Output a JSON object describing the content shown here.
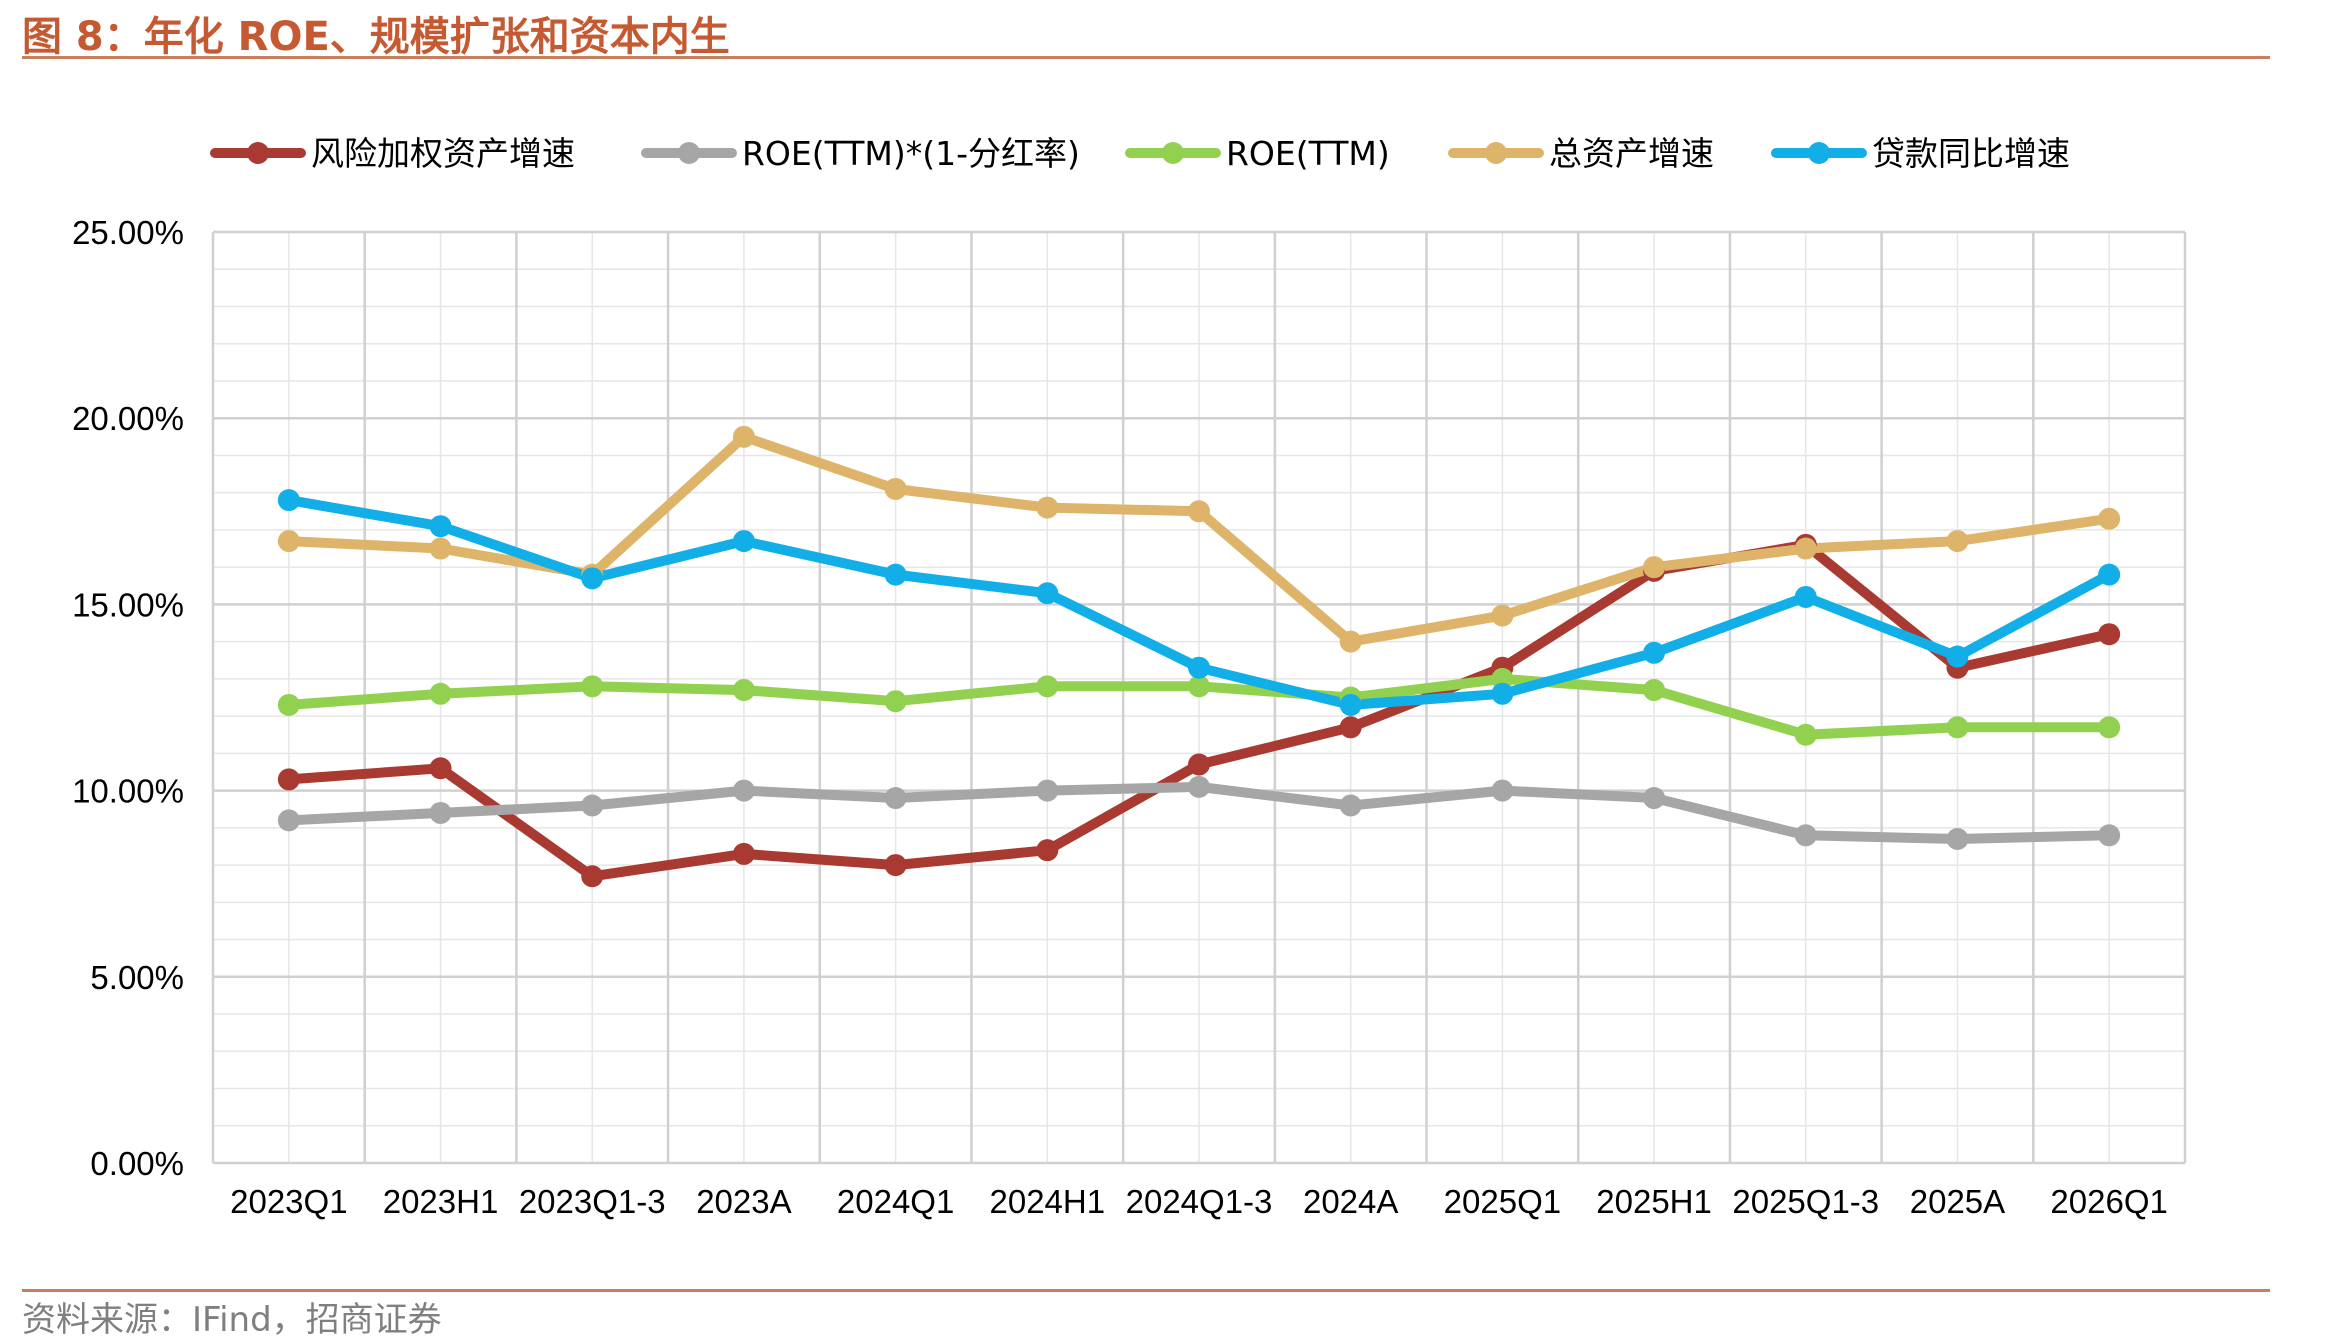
{
  "figure": {
    "title": "图 8：年化 ROE、规模扩张和资本内生",
    "source": "资料来源：IFind，招商证券"
  },
  "chart_data": {
    "type": "line",
    "categories": [
      "2023Q1",
      "2023H1",
      "2023Q1-3",
      "2023A",
      "2024Q1",
      "2024H1",
      "2024Q1-3",
      "2024A",
      "2025Q1",
      "2025H1",
      "2025Q1-3",
      "2025A",
      "2026Q1"
    ],
    "y_ticks": [
      "0.00%",
      "5.00%",
      "10.00%",
      "15.00%",
      "20.00%",
      "25.00%"
    ],
    "ylim": [
      0,
      25
    ],
    "grid": true,
    "legend_position": "top",
    "series": [
      {
        "name": "风险加权资产增速",
        "color": "#a93a32",
        "values": [
          10.3,
          10.6,
          7.7,
          8.3,
          8.0,
          8.4,
          10.7,
          11.7,
          13.3,
          15.9,
          16.6,
          13.3,
          14.2
        ]
      },
      {
        "name": "ROE(TTM)*(1-分红率)",
        "color": "#a6a6a6",
        "values": [
          9.2,
          9.4,
          9.6,
          10.0,
          9.8,
          10.0,
          10.1,
          9.6,
          10.0,
          9.8,
          8.8,
          8.7,
          8.8
        ]
      },
      {
        "name": "ROE(TTM)",
        "color": "#92d050",
        "values": [
          12.3,
          12.6,
          12.8,
          12.7,
          12.4,
          12.8,
          12.8,
          12.5,
          13.0,
          12.7,
          11.5,
          11.7,
          11.7
        ]
      },
      {
        "name": "总资产增速",
        "color": "#ddb46a",
        "values": [
          16.7,
          16.5,
          15.8,
          19.5,
          18.1,
          17.6,
          17.5,
          14.0,
          14.7,
          16.0,
          16.5,
          16.7,
          17.3
        ]
      },
      {
        "name": "贷款同比增速",
        "color": "#12aee8",
        "values": [
          17.8,
          17.1,
          15.7,
          16.7,
          15.8,
          15.3,
          13.3,
          12.3,
          12.6,
          13.7,
          15.2,
          13.6,
          15.8
        ]
      }
    ]
  }
}
